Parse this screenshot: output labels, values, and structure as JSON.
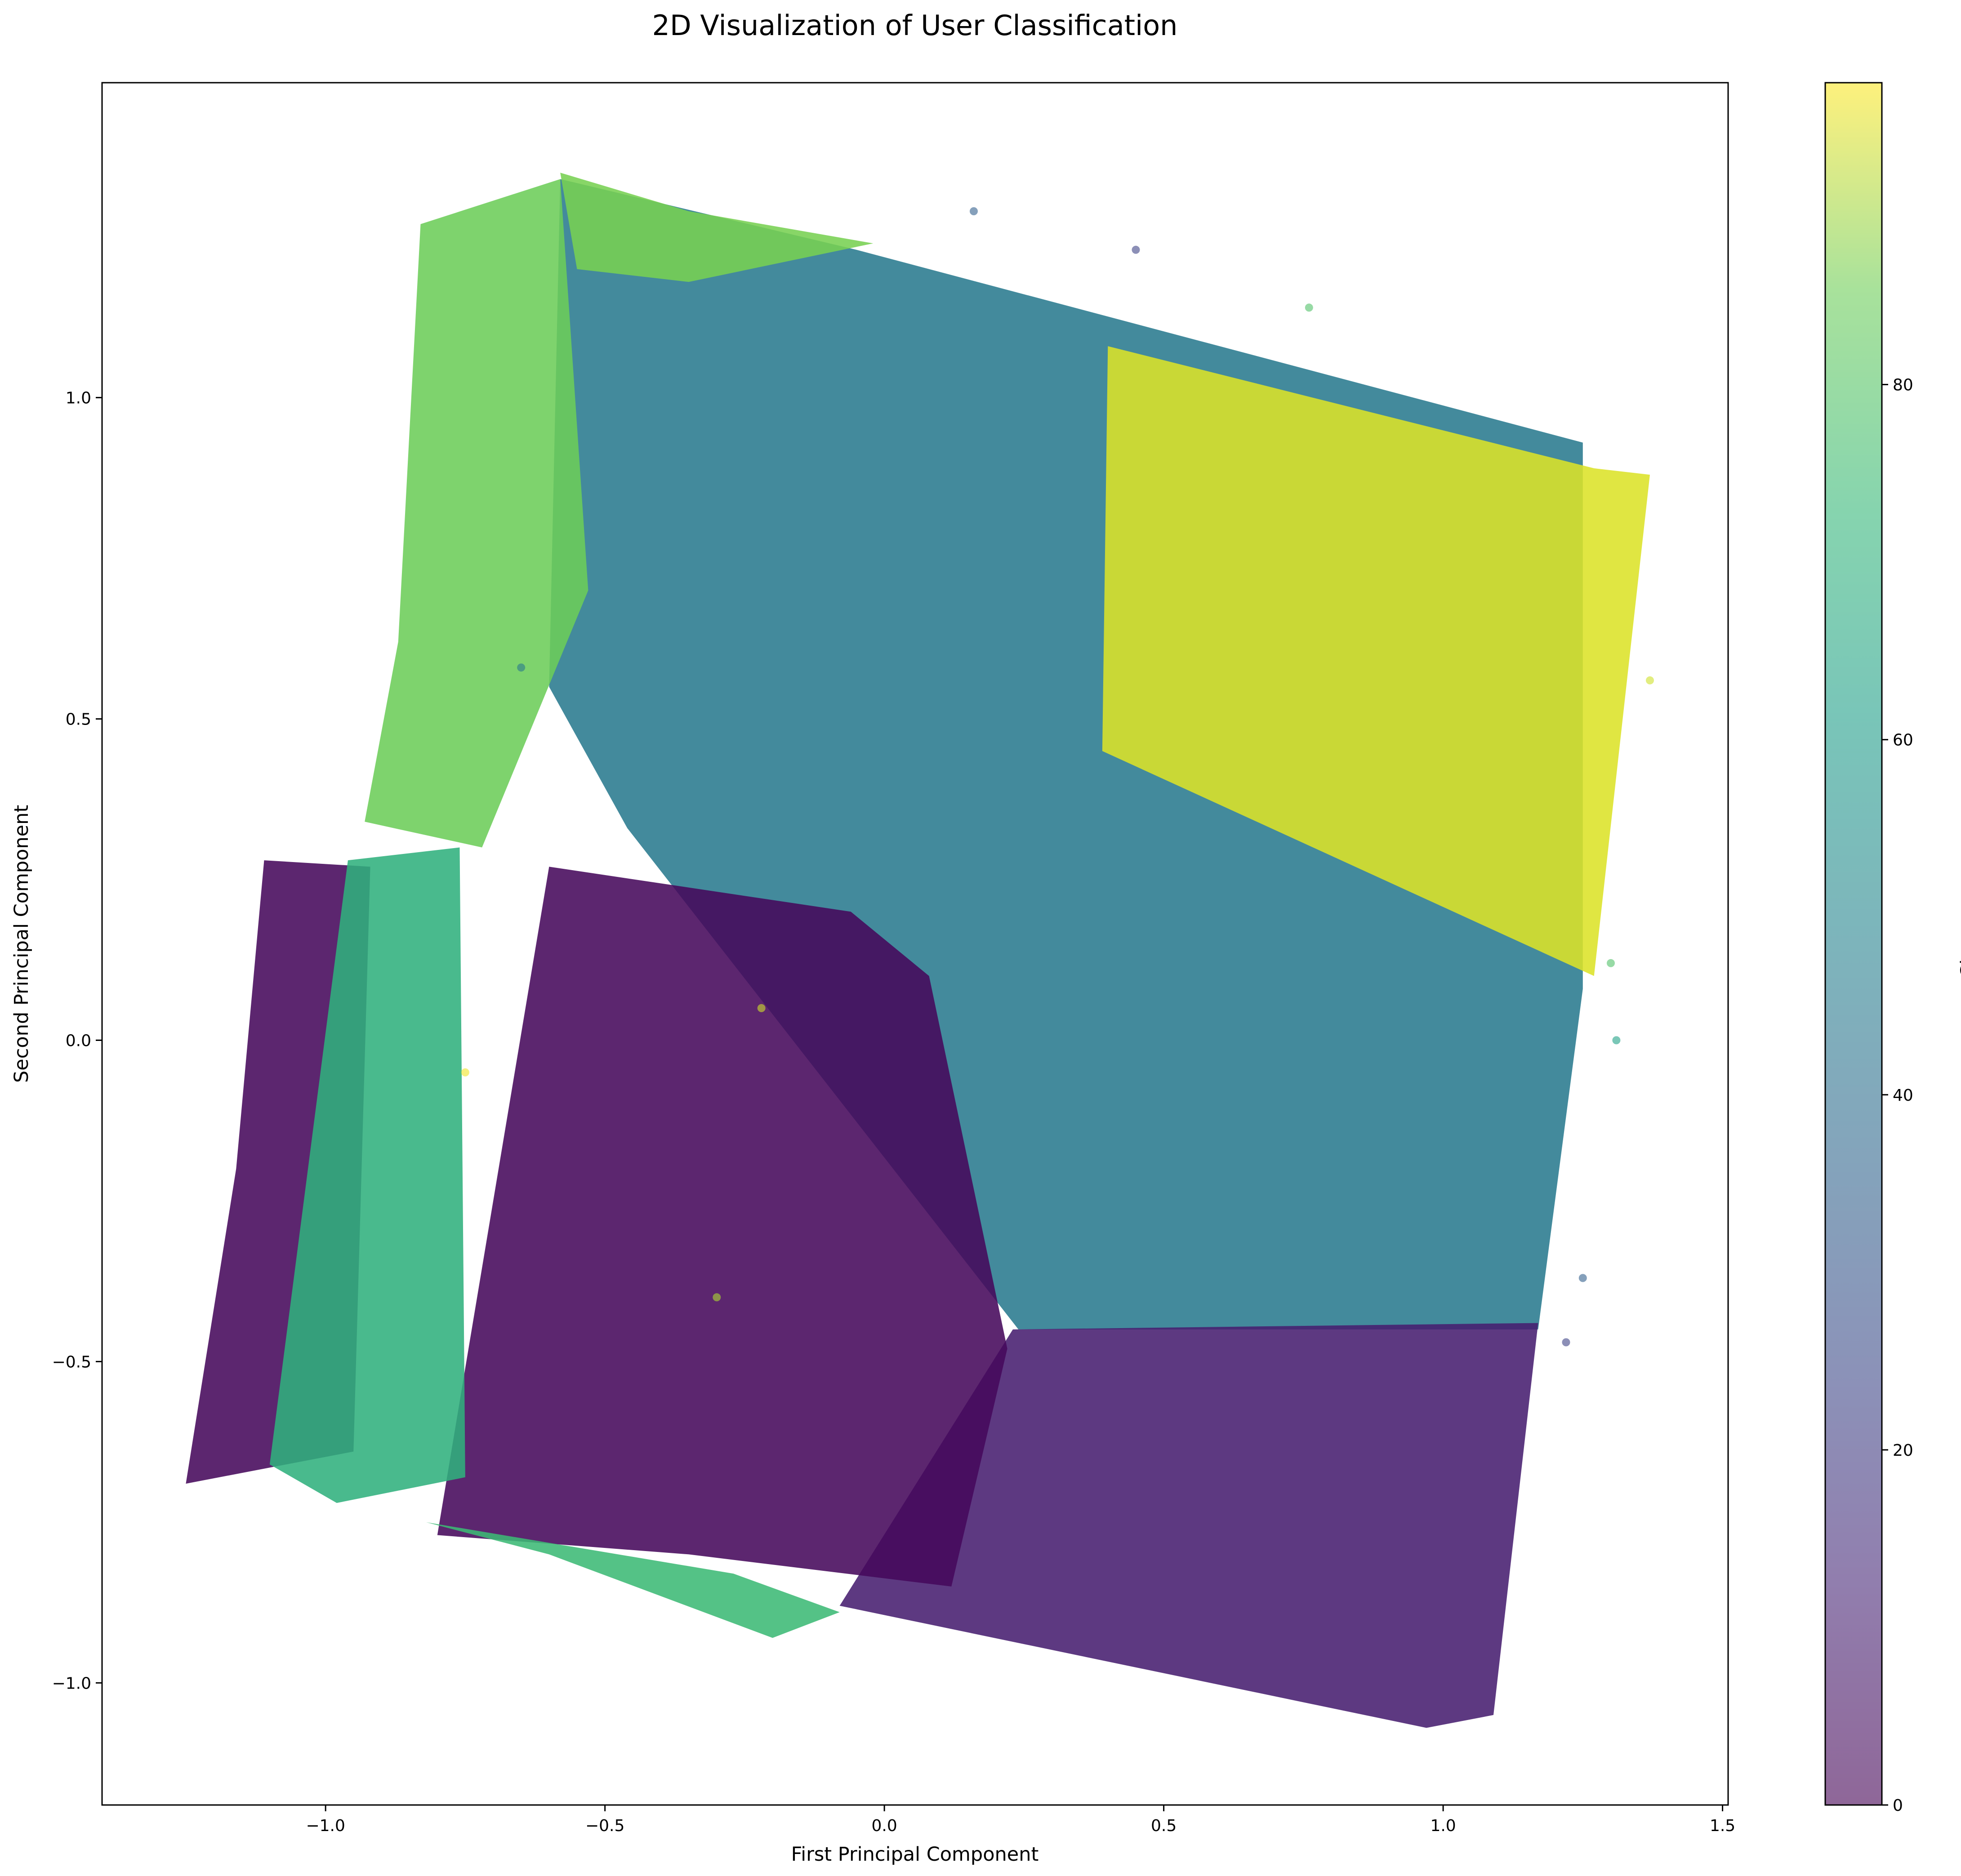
{
  "chart_data": {
    "type": "scatter",
    "title": "2D Visualization of User Classification",
    "xlabel": "First Principal Component",
    "ylabel": "Second Principal Component",
    "xlim": [
      -1.4,
      1.51
    ],
    "ylim": [
      -1.19,
      1.49
    ],
    "x_ticks": [
      -1.0,
      -0.5,
      0.0,
      0.5,
      1.0,
      1.5
    ],
    "x_tick_labels": [
      "−1.0",
      "−0.5",
      "0.0",
      "0.5",
      "1.0",
      "1.5"
    ],
    "y_ticks": [
      -1.0,
      -0.5,
      0.0,
      0.5,
      1.0
    ],
    "y_tick_labels": [
      "−1.0",
      "−0.5",
      "0.0",
      "0.5",
      "1.0"
    ],
    "grid": false,
    "colormap": "viridis",
    "point_alpha": 0.6,
    "colorbar": {
      "label": "Cluster",
      "range": [
        0,
        97
      ],
      "ticks": [
        0,
        20,
        40,
        60,
        80
      ],
      "tick_labels": [
        "0",
        "20",
        "40",
        "60",
        "80"
      ]
    },
    "regions": [
      {
        "cluster": 40,
        "polygon": [
          [
            -0.58,
            1.34
          ],
          [
            -0.05,
            1.23
          ],
          [
            1.25,
            0.93
          ],
          [
            1.25,
            0.08
          ],
          [
            1.17,
            -0.45
          ],
          [
            0.24,
            -0.45
          ],
          [
            -0.46,
            0.33
          ],
          [
            -0.6,
            0.55
          ]
        ]
      },
      {
        "cluster": 92,
        "polygon": [
          [
            0.4,
            1.08
          ],
          [
            1.27,
            0.89
          ],
          [
            1.37,
            0.88
          ],
          [
            1.27,
            0.1
          ],
          [
            0.39,
            0.45
          ]
        ]
      },
      {
        "cluster": 8,
        "polygon": [
          [
            0.23,
            -0.45
          ],
          [
            1.17,
            -0.44
          ],
          [
            1.09,
            -1.05
          ],
          [
            0.97,
            -1.07
          ],
          [
            -0.08,
            -0.88
          ]
        ]
      },
      {
        "cluster": 2,
        "polygon": [
          [
            -0.6,
            0.27
          ],
          [
            -0.06,
            0.2
          ],
          [
            0.08,
            0.1
          ],
          [
            0.22,
            -0.48
          ],
          [
            0.12,
            -0.85
          ],
          [
            -0.35,
            -0.8
          ],
          [
            -0.8,
            -0.77
          ]
        ]
      },
      {
        "cluster": 2,
        "polygon": [
          [
            -1.11,
            0.28
          ],
          [
            -0.92,
            0.27
          ],
          [
            -0.95,
            -0.64
          ],
          [
            -1.25,
            -0.69
          ],
          [
            -1.16,
            -0.2
          ]
        ]
      },
      {
        "cluster": 62,
        "polygon": [
          [
            -0.96,
            0.28
          ],
          [
            -0.76,
            0.3
          ],
          [
            -0.75,
            -0.68
          ],
          [
            -0.98,
            -0.72
          ],
          [
            -1.1,
            -0.66
          ]
        ]
      },
      {
        "cluster": 75,
        "polygon": [
          [
            -0.83,
            1.27
          ],
          [
            -0.58,
            1.34
          ],
          [
            -0.53,
            0.7
          ],
          [
            -0.72,
            0.3
          ],
          [
            -0.93,
            0.34
          ],
          [
            -0.87,
            0.62
          ]
        ]
      },
      {
        "cluster": 77,
        "polygon": [
          [
            -0.58,
            1.35
          ],
          [
            -0.35,
            1.29
          ],
          [
            -0.02,
            1.24
          ],
          [
            -0.35,
            1.18
          ],
          [
            -0.55,
            1.2
          ]
        ]
      },
      {
        "cluster": 66,
        "polygon": [
          [
            -0.82,
            -0.75
          ],
          [
            -0.27,
            -0.83
          ],
          [
            -0.08,
            -0.89
          ],
          [
            -0.2,
            -0.93
          ],
          [
            -0.6,
            -0.8
          ]
        ]
      }
    ],
    "scatter_points": [
      {
        "x": 0.45,
        "y": 1.23,
        "cluster": 20
      },
      {
        "x": 0.76,
        "y": 1.14,
        "cluster": 70
      },
      {
        "x": 1.37,
        "y": 0.56,
        "cluster": 90
      },
      {
        "x": 1.3,
        "y": 0.12,
        "cluster": 70
      },
      {
        "x": 1.31,
        "y": 0.0,
        "cluster": 55
      },
      {
        "x": 1.22,
        "y": -0.47,
        "cluster": 20
      },
      {
        "x": 1.25,
        "y": -0.37,
        "cluster": 30
      },
      {
        "x": 0.16,
        "y": 1.29,
        "cluster": 30
      },
      {
        "x": -0.65,
        "y": 0.58,
        "cluster": 40
      },
      {
        "x": -0.3,
        "y": -0.4,
        "cluster": 85
      },
      {
        "x": -0.75,
        "y": -0.05,
        "cluster": 95
      },
      {
        "x": -0.22,
        "y": 0.05,
        "cluster": 90
      }
    ]
  }
}
